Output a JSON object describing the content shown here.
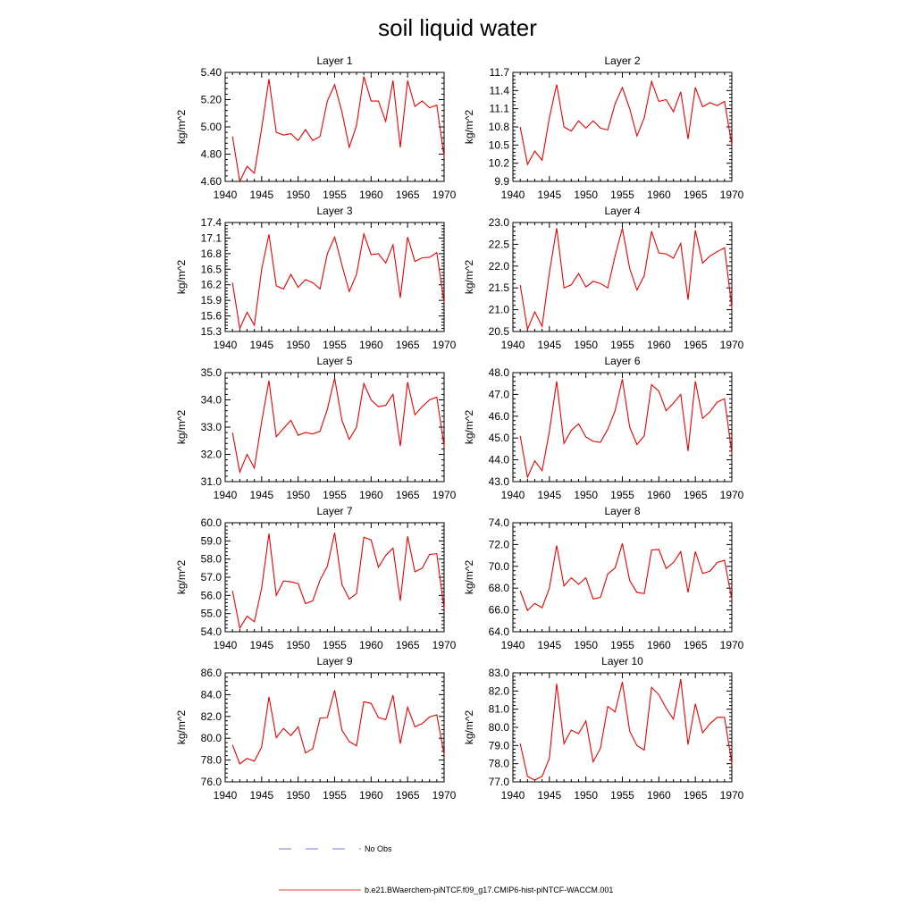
{
  "figure": {
    "title": "soil liquid water"
  },
  "legend": {
    "items": [
      {
        "label": "No Obs",
        "color": "#4455cc",
        "style": "dashed"
      },
      {
        "label": "b.e21.BWaerchem-piNTCF.f09_g17.CMIP6-hist-piNTCF-WACCM.001",
        "color": "#ee0000",
        "style": "solid"
      }
    ]
  },
  "chart_data": [
    {
      "type": "line",
      "title": "Layer 1",
      "ylabel": "kg/m^2",
      "xlim": [
        1940,
        1970
      ],
      "ylim": [
        4.6,
        5.4
      ],
      "x_ticks": [
        1940,
        1945,
        1950,
        1955,
        1960,
        1965,
        1970
      ],
      "y_ticks": [
        "4.60",
        "4.80",
        "5.00",
        "5.20",
        "5.40"
      ],
      "series": [
        {
          "color": "#ee0000",
          "x": [
            1941,
            1942,
            1943,
            1944,
            1945,
            1946,
            1947,
            1948,
            1949,
            1950,
            1951,
            1952,
            1953,
            1954,
            1955,
            1956,
            1957,
            1958,
            1959,
            1960,
            1961,
            1962,
            1963,
            1964,
            1965,
            1966,
            1967,
            1968,
            1969,
            1970
          ],
          "values": [
            4.93,
            4.6,
            4.71,
            4.66,
            4.99,
            5.35,
            4.96,
            4.94,
            4.95,
            4.9,
            4.98,
            4.9,
            4.93,
            5.19,
            5.31,
            5.11,
            4.85,
            5.01,
            5.37,
            5.19,
            5.19,
            5.04,
            5.34,
            4.85,
            5.34,
            5.15,
            5.19,
            5.14,
            5.16,
            4.78
          ]
        }
      ]
    },
    {
      "type": "line",
      "title": "Layer 2",
      "ylabel": "kg/m^2",
      "xlim": [
        1940,
        1970
      ],
      "ylim": [
        9.9,
        11.7
      ],
      "x_ticks": [
        1940,
        1945,
        1950,
        1955,
        1960,
        1965,
        1970
      ],
      "y_ticks": [
        "9.9",
        "10.2",
        "10.5",
        "10.8",
        "11.1",
        "11.4",
        "11.7"
      ],
      "series": [
        {
          "color": "#ee0000",
          "x": [
            1941,
            1942,
            1943,
            1944,
            1945,
            1946,
            1947,
            1948,
            1949,
            1950,
            1951,
            1952,
            1953,
            1954,
            1955,
            1956,
            1957,
            1958,
            1959,
            1960,
            1961,
            1962,
            1963,
            1964,
            1965,
            1966,
            1967,
            1968,
            1969,
            1970
          ],
          "values": [
            10.8,
            10.18,
            10.4,
            10.25,
            10.95,
            11.5,
            10.8,
            10.73,
            10.9,
            10.78,
            10.9,
            10.78,
            10.75,
            11.18,
            11.45,
            11.1,
            10.65,
            10.95,
            11.55,
            11.22,
            11.25,
            11.05,
            11.38,
            10.6,
            11.45,
            11.13,
            11.2,
            11.15,
            11.22,
            10.5
          ]
        }
      ]
    },
    {
      "type": "line",
      "title": "Layer 3",
      "ylabel": "kg/m^2",
      "xlim": [
        1940,
        1970
      ],
      "ylim": [
        15.3,
        17.4
      ],
      "x_ticks": [
        1940,
        1945,
        1950,
        1955,
        1960,
        1965,
        1970
      ],
      "y_ticks": [
        "15.3",
        "15.6",
        "15.9",
        "16.2",
        "16.5",
        "16.8",
        "17.1",
        "17.4"
      ],
      "series": [
        {
          "color": "#ee0000",
          "x": [
            1941,
            1942,
            1943,
            1944,
            1945,
            1946,
            1947,
            1948,
            1949,
            1950,
            1951,
            1952,
            1953,
            1954,
            1955,
            1956,
            1957,
            1958,
            1959,
            1960,
            1961,
            1962,
            1963,
            1964,
            1965,
            1966,
            1967,
            1968,
            1969,
            1970
          ],
          "values": [
            16.24,
            15.36,
            15.67,
            15.42,
            16.5,
            17.17,
            16.18,
            16.12,
            16.4,
            16.15,
            16.3,
            16.24,
            16.12,
            16.8,
            17.12,
            16.58,
            16.07,
            16.4,
            17.18,
            16.78,
            16.8,
            16.62,
            16.97,
            15.95,
            17.12,
            16.65,
            16.72,
            16.73,
            16.82,
            15.85
          ]
        }
      ]
    },
    {
      "type": "line",
      "title": "Layer 4",
      "ylabel": "kg/m^2",
      "xlim": [
        1940,
        1970
      ],
      "ylim": [
        20.5,
        23.0
      ],
      "x_ticks": [
        1940,
        1945,
        1950,
        1955,
        1960,
        1965,
        1970
      ],
      "y_ticks": [
        "20.5",
        "21.0",
        "21.5",
        "22.0",
        "22.5",
        "23.0"
      ],
      "series": [
        {
          "color": "#ee0000",
          "x": [
            1941,
            1942,
            1943,
            1944,
            1945,
            1946,
            1947,
            1948,
            1949,
            1950,
            1951,
            1952,
            1953,
            1954,
            1955,
            1956,
            1957,
            1958,
            1959,
            1960,
            1961,
            1962,
            1963,
            1964,
            1965,
            1966,
            1967,
            1968,
            1969,
            1970
          ],
          "values": [
            21.57,
            20.55,
            20.95,
            20.62,
            21.85,
            22.87,
            21.5,
            21.57,
            21.83,
            21.52,
            21.65,
            21.6,
            21.5,
            22.23,
            22.87,
            21.95,
            21.45,
            21.78,
            22.8,
            22.3,
            22.28,
            22.18,
            22.52,
            21.23,
            22.82,
            22.07,
            22.23,
            22.33,
            22.42,
            21.05
          ]
        }
      ]
    },
    {
      "type": "line",
      "title": "Layer 5",
      "ylabel": "kg/m^2",
      "xlim": [
        1940,
        1970
      ],
      "ylim": [
        31.0,
        35.0
      ],
      "x_ticks": [
        1940,
        1945,
        1950,
        1955,
        1960,
        1965,
        1970
      ],
      "y_ticks": [
        "31.0",
        "32.0",
        "33.0",
        "34.0",
        "35.0"
      ],
      "series": [
        {
          "color": "#ee0000",
          "x": [
            1941,
            1942,
            1943,
            1944,
            1945,
            1946,
            1947,
            1948,
            1949,
            1950,
            1951,
            1952,
            1953,
            1954,
            1955,
            1956,
            1957,
            1958,
            1959,
            1960,
            1961,
            1962,
            1963,
            1964,
            1965,
            1966,
            1967,
            1968,
            1969,
            1970
          ],
          "values": [
            32.8,
            31.35,
            32.0,
            31.5,
            33.2,
            34.7,
            32.65,
            32.95,
            33.25,
            32.7,
            32.8,
            32.75,
            32.85,
            33.65,
            34.8,
            33.25,
            32.55,
            33.0,
            34.6,
            34.0,
            33.75,
            33.8,
            34.2,
            32.3,
            34.65,
            33.45,
            33.75,
            34.0,
            34.1,
            32.3
          ]
        }
      ]
    },
    {
      "type": "line",
      "title": "Layer 6",
      "ylabel": "kg/m^2",
      "xlim": [
        1940,
        1970
      ],
      "ylim": [
        43.0,
        48.0
      ],
      "x_ticks": [
        1940,
        1945,
        1950,
        1955,
        1960,
        1965,
        1970
      ],
      "y_ticks": [
        "43.0",
        "44.0",
        "45.0",
        "46.0",
        "47.0",
        "48.0"
      ],
      "series": [
        {
          "color": "#ee0000",
          "x": [
            1941,
            1942,
            1943,
            1944,
            1945,
            1946,
            1947,
            1948,
            1949,
            1950,
            1951,
            1952,
            1953,
            1954,
            1955,
            1956,
            1957,
            1958,
            1959,
            1960,
            1961,
            1962,
            1963,
            1964,
            1965,
            1966,
            1967,
            1968,
            1969,
            1970
          ],
          "values": [
            45.1,
            43.2,
            43.95,
            43.5,
            45.3,
            47.6,
            44.75,
            45.35,
            45.65,
            45.05,
            44.85,
            44.8,
            45.4,
            46.25,
            47.7,
            45.5,
            44.7,
            45.1,
            47.45,
            47.15,
            46.25,
            46.6,
            47.0,
            44.4,
            47.6,
            45.9,
            46.2,
            46.65,
            46.8,
            44.3
          ]
        }
      ]
    },
    {
      "type": "line",
      "title": "Layer 7",
      "ylabel": "kg/m^2",
      "xlim": [
        1940,
        1970
      ],
      "ylim": [
        54.0,
        60.0
      ],
      "x_ticks": [
        1940,
        1945,
        1950,
        1955,
        1960,
        1965,
        1970
      ],
      "y_ticks": [
        "54.0",
        "55.0",
        "56.0",
        "57.0",
        "58.0",
        "59.0",
        "60.0"
      ],
      "series": [
        {
          "color": "#ee0000",
          "x": [
            1941,
            1942,
            1943,
            1944,
            1945,
            1946,
            1947,
            1948,
            1949,
            1950,
            1951,
            1952,
            1953,
            1954,
            1955,
            1956,
            1957,
            1958,
            1959,
            1960,
            1961,
            1962,
            1963,
            1964,
            1965,
            1966,
            1967,
            1968,
            1969,
            1970
          ],
          "values": [
            56.25,
            54.2,
            54.85,
            54.55,
            56.4,
            59.4,
            56.0,
            56.8,
            56.75,
            56.65,
            55.55,
            55.7,
            56.85,
            57.6,
            59.45,
            56.6,
            55.8,
            56.1,
            59.2,
            59.05,
            57.55,
            58.2,
            58.6,
            55.7,
            59.25,
            57.3,
            57.5,
            58.25,
            58.3,
            55.25
          ]
        }
      ]
    },
    {
      "type": "line",
      "title": "Layer 8",
      "ylabel": "kg/m^2",
      "xlim": [
        1940,
        1970
      ],
      "ylim": [
        64.0,
        74.0
      ],
      "x_ticks": [
        1940,
        1945,
        1950,
        1955,
        1960,
        1965,
        1970
      ],
      "y_ticks": [
        "64.0",
        "66.0",
        "68.0",
        "70.0",
        "72.0",
        "74.0"
      ],
      "series": [
        {
          "color": "#ee0000",
          "x": [
            1941,
            1942,
            1943,
            1944,
            1945,
            1946,
            1947,
            1948,
            1949,
            1950,
            1951,
            1952,
            1953,
            1954,
            1955,
            1956,
            1957,
            1958,
            1959,
            1960,
            1961,
            1962,
            1963,
            1964,
            1965,
            1966,
            1967,
            1968,
            1969,
            1970
          ],
          "values": [
            67.75,
            65.95,
            66.6,
            66.2,
            68.0,
            71.9,
            68.2,
            68.95,
            68.35,
            68.95,
            67.0,
            67.15,
            69.3,
            69.85,
            72.1,
            68.7,
            67.6,
            67.5,
            71.5,
            71.55,
            69.8,
            70.35,
            71.35,
            67.6,
            71.35,
            69.35,
            69.55,
            70.35,
            70.55,
            66.95
          ]
        }
      ]
    },
    {
      "type": "line",
      "title": "Layer 9",
      "ylabel": "kg/m^2",
      "xlim": [
        1940,
        1970
      ],
      "ylim": [
        76.0,
        86.0
      ],
      "x_ticks": [
        1940,
        1945,
        1950,
        1955,
        1960,
        1965,
        1970
      ],
      "y_ticks": [
        "76.0",
        "78.0",
        "80.0",
        "82.0",
        "84.0",
        "86.0"
      ],
      "series": [
        {
          "color": "#ee0000",
          "x": [
            1941,
            1942,
            1943,
            1944,
            1945,
            1946,
            1947,
            1948,
            1949,
            1950,
            1951,
            1952,
            1953,
            1954,
            1955,
            1956,
            1957,
            1958,
            1959,
            1960,
            1961,
            1962,
            1963,
            1964,
            1965,
            1966,
            1967,
            1968,
            1969,
            1970
          ],
          "values": [
            79.4,
            77.65,
            78.15,
            77.9,
            79.2,
            83.8,
            80.05,
            80.9,
            80.25,
            81.05,
            78.65,
            79.05,
            81.85,
            81.9,
            84.4,
            80.75,
            79.7,
            79.3,
            83.35,
            83.2,
            81.9,
            81.7,
            83.95,
            79.5,
            82.85,
            81.05,
            81.35,
            81.95,
            82.15,
            78.5
          ]
        }
      ]
    },
    {
      "type": "line",
      "title": "Layer 10",
      "ylabel": "kg/m^2",
      "xlim": [
        1940,
        1970
      ],
      "ylim": [
        77.0,
        83.0
      ],
      "x_ticks": [
        1940,
        1945,
        1950,
        1955,
        1960,
        1965,
        1970
      ],
      "y_ticks": [
        "77.0",
        "78.0",
        "79.0",
        "80.0",
        "81.0",
        "82.0",
        "83.0"
      ],
      "series": [
        {
          "color": "#ee0000",
          "x": [
            1941,
            1942,
            1943,
            1944,
            1945,
            1946,
            1947,
            1948,
            1949,
            1950,
            1951,
            1952,
            1953,
            1954,
            1955,
            1956,
            1957,
            1958,
            1959,
            1960,
            1961,
            1962,
            1963,
            1964,
            1965,
            1966,
            1967,
            1968,
            1969,
            1970
          ],
          "values": [
            79.1,
            77.3,
            77.1,
            77.3,
            78.3,
            82.4,
            79.1,
            79.85,
            79.65,
            80.35,
            78.1,
            78.85,
            81.15,
            80.85,
            82.5,
            79.8,
            79.0,
            78.75,
            82.2,
            81.8,
            81.05,
            80.45,
            82.65,
            79.05,
            81.3,
            79.7,
            80.2,
            80.55,
            80.55,
            78.0
          ]
        }
      ]
    }
  ]
}
